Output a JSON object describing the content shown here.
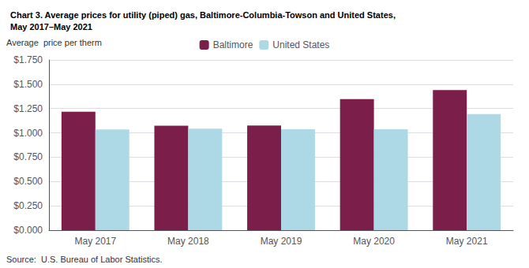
{
  "chart_data": {
    "type": "bar",
    "title": "Chart 3. Average prices for utility (piped) gas, Baltimore-Columbia-Towson and United States,\nMay 2017–May 2021",
    "ylabel": "Average  price per therm",
    "categories": [
      "May 2017",
      "May 2018",
      "May 2019",
      "May 2020",
      "May 2021"
    ],
    "series": [
      {
        "name": "Baltimore",
        "color": "#7B1F4A",
        "values": [
          1.218,
          1.073,
          1.076,
          1.347,
          1.44
        ]
      },
      {
        "name": "United States",
        "color": "#ADD8E6",
        "values": [
          1.035,
          1.044,
          1.037,
          1.038,
          1.193
        ]
      }
    ],
    "ylim": [
      0,
      1.75
    ],
    "yticks": [
      {
        "value": 0,
        "label": "$0.000"
      },
      {
        "value": 0.25,
        "label": "$0.250"
      },
      {
        "value": 0.5,
        "label": "$0.500"
      },
      {
        "value": 0.75,
        "label": "$0.750"
      },
      {
        "value": 1.0,
        "label": "$1.000"
      },
      {
        "value": 1.25,
        "label": "$1.250"
      },
      {
        "value": 1.5,
        "label": "$1.500"
      },
      {
        "value": 1.75,
        "label": "$1.750"
      }
    ],
    "grid": true,
    "legend": "top",
    "annotations": [
      "Source:  U.S. Bureau of Labor Statistics."
    ]
  }
}
